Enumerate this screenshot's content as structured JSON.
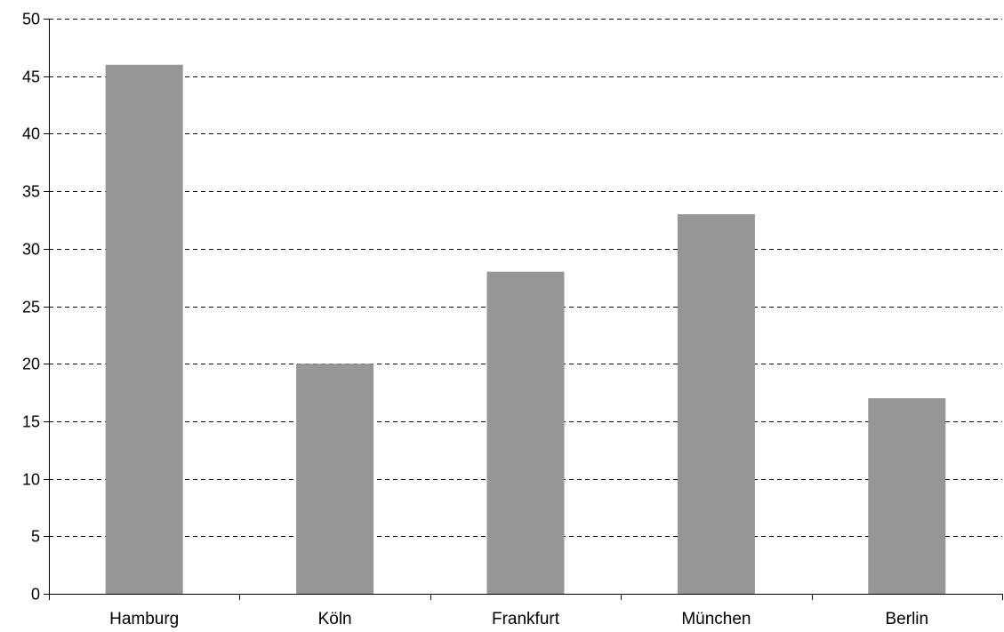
{
  "chart_data": {
    "type": "bar",
    "categories": [
      "Hamburg",
      "Köln",
      "Frankfurt",
      "München",
      "Berlin"
    ],
    "values": [
      46,
      20,
      28,
      33,
      17
    ],
    "title": "",
    "xlabel": "",
    "ylabel": "",
    "ylim": [
      0,
      50
    ],
    "yticks": [
      "0",
      "5",
      "10",
      "15",
      "20",
      "25",
      "30",
      "35",
      "40",
      "45",
      "50"
    ],
    "grid": true,
    "legend": "none",
    "bar_color": "#969696"
  }
}
